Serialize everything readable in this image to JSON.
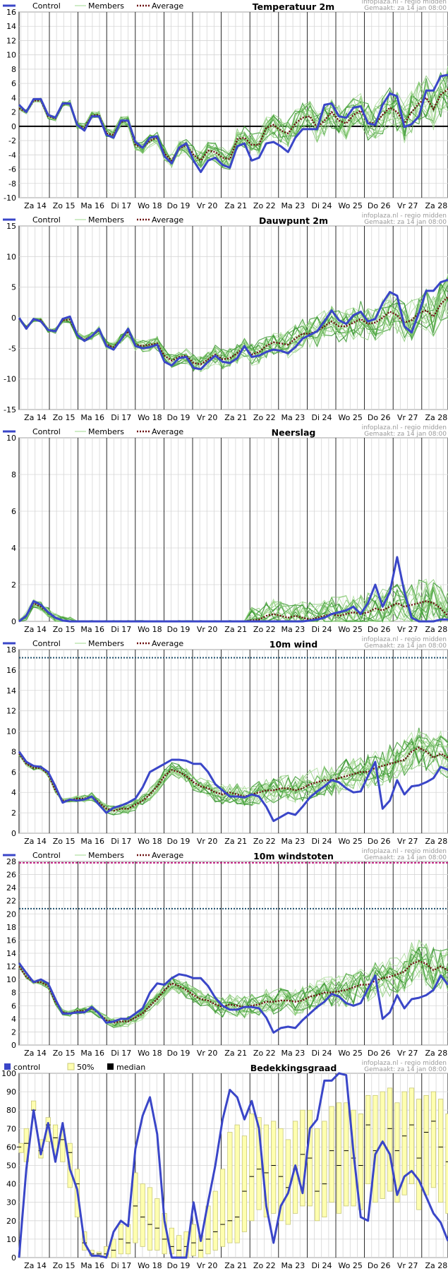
{
  "source_line1": "infoplaza.nl - regio midden",
  "source_line2": "Gemaakt: za 14 jan 08:00",
  "x_labels": [
    "Za 14",
    "Zo 15",
    "Ma 16",
    "Di 17",
    "Wo 18",
    "Do 19",
    "Vr 20",
    "Za 21",
    "Zo 22",
    "Ma 23",
    "Di 24",
    "Wo 25",
    "Do 26",
    "Vr 27",
    "Za 28"
  ],
  "legend_line": {
    "control": "Control",
    "members": "Members",
    "average": "Average"
  },
  "legend_bar": {
    "control": "control",
    "band": "50%",
    "median": "median"
  },
  "colors": {
    "control": "#3a46c8",
    "members": "#5fae4a",
    "average": "#6b0f0f",
    "band_fill": "#ffffb0",
    "band_stroke": "#c8c878",
    "grid": "#d6d6d6",
    "day": "#000000",
    "threshold": "#1f4f6b"
  },
  "chart_data": [
    {
      "type": "line",
      "title": "Temperatuur 2m",
      "ylim": [
        -10,
        16
      ],
      "yticks": [
        -10,
        -8,
        -6,
        -4,
        -2,
        0,
        2,
        4,
        6,
        8,
        10,
        12,
        14,
        16
      ],
      "zero_line": true,
      "series": [
        {
          "name": "Control",
          "values": [
            3,
            2,
            3.8,
            3.8,
            1.6,
            1.2,
            3.2,
            3.2,
            0.2,
            -0.6,
            1.4,
            1.4,
            -1.2,
            -1.6,
            0.8,
            0.8,
            -2.2,
            -3,
            -1.6,
            -1.4,
            -4.2,
            -5.2,
            -3,
            -2.4,
            -4.8,
            -6.4,
            -4.8,
            -4.4,
            -5.4,
            -5.8,
            -2.8,
            -2.4,
            -4.8,
            -4.4,
            -2.4,
            -2.2,
            -2.8,
            -3.6,
            -1.6,
            -0.4,
            -0.4,
            -0.4,
            3,
            3.2,
            1.4,
            1.2,
            2.6,
            2.8,
            0.4,
            0.2,
            3,
            4.6,
            4.2,
            -0.1,
            0.3,
            1.4,
            5,
            5,
            7,
            7.2
          ]
        },
        {
          "name": "Average",
          "values": [
            2.5,
            2,
            3.6,
            3.6,
            1.4,
            1.1,
            3.1,
            3.2,
            0.1,
            -0.2,
            1.5,
            1.6,
            -1,
            -1.2,
            0.6,
            0.8,
            -2.6,
            -3,
            -2,
            -1.6,
            -3.8,
            -4.8,
            -3.2,
            -2.6,
            -4,
            -4.8,
            -3.4,
            -3.6,
            -4.4,
            -4.6,
            -1.8,
            -1.6,
            -2.6,
            -2.6,
            -0.2,
            0.2,
            -0.6,
            -1,
            0.4,
            1.2,
            1.4,
            -0.2,
            0.8,
            2,
            0.8,
            0.4,
            1.6,
            2.2,
            0.6,
            0.4,
            1.6,
            2.6,
            2,
            0.4,
            2,
            3.2,
            4,
            2.4,
            4.4,
            5.2
          ]
        }
      ]
    },
    {
      "type": "line",
      "title": "Dauwpunt 2m",
      "ylim": [
        -15,
        15
      ],
      "yticks": [
        -15,
        -10,
        -5,
        0,
        5,
        10,
        15
      ],
      "zero_line": false,
      "series": [
        {
          "name": "Control",
          "values": [
            0,
            -1.8,
            -0.2,
            -0.6,
            -2,
            -2.2,
            -0.2,
            0.2,
            -2.8,
            -3.8,
            -3,
            -1.8,
            -4.6,
            -5.2,
            -3.6,
            -1.8,
            -4.6,
            -5,
            -4.8,
            -4.4,
            -7.2,
            -7.8,
            -6.6,
            -6.4,
            -8.2,
            -8.4,
            -7.2,
            -6.2,
            -7.2,
            -7.4,
            -6.6,
            -4.6,
            -6.4,
            -6.2,
            -5.6,
            -5.2,
            -5.4,
            -5.8,
            -4.8,
            -3.4,
            -2.8,
            -2.2,
            -0.6,
            1.2,
            -0.4,
            -1,
            0.4,
            1,
            -0.6,
            -0.2,
            2.4,
            4.2,
            3.6,
            -1.4,
            -2.4,
            0.8,
            4.4,
            4.4,
            5.8,
            6.2
          ]
        },
        {
          "name": "Average",
          "values": [
            -0.2,
            -1.6,
            -0.3,
            -0.4,
            -2,
            -2.1,
            -0.4,
            -0.3,
            -2.8,
            -3.6,
            -3,
            -2,
            -4.4,
            -4.8,
            -3.6,
            -2.2,
            -4.4,
            -4.6,
            -4.4,
            -4.2,
            -6.2,
            -7,
            -6.4,
            -6.2,
            -7.4,
            -7.6,
            -6.8,
            -6,
            -6.8,
            -6.6,
            -5.8,
            -4.8,
            -6,
            -5.6,
            -4.6,
            -4,
            -4.2,
            -4.4,
            -3.4,
            -2.6,
            -2.6,
            -2.2,
            -1.4,
            -0.6,
            -1.4,
            -1.4,
            -0.8,
            -0.2,
            -1,
            -0.8,
            0,
            1,
            0.4,
            -0.8,
            -0.4,
            0.8,
            1.2,
            0.2,
            2.2,
            3.4
          ]
        }
      ]
    },
    {
      "type": "line",
      "title": "Neerslag",
      "ylim": [
        0,
        10
      ],
      "yticks": [
        0,
        2,
        4,
        6,
        8,
        10
      ],
      "zero_line": false,
      "series": [
        {
          "name": "Control",
          "values": [
            0,
            0.3,
            1.1,
            0.9,
            0.5,
            0.2,
            0.05,
            0,
            0,
            0,
            0,
            0,
            0,
            0,
            0,
            0,
            0,
            0,
            0,
            0,
            0,
            0,
            0,
            0,
            0,
            0,
            0,
            0,
            0,
            0,
            0,
            0,
            0,
            0,
            0,
            0,
            0,
            0,
            0,
            0,
            0.05,
            0.1,
            0.2,
            0.4,
            0.5,
            0.6,
            0.8,
            0.4,
            1,
            2,
            0.8,
            1.6,
            3.5,
            1.6,
            0.2,
            0,
            0,
            0,
            0.1,
            0.1
          ]
        },
        {
          "name": "Average",
          "values": [
            0,
            0.3,
            1,
            0.8,
            0.5,
            0.2,
            0.05,
            0,
            0,
            0,
            0,
            0,
            0,
            0,
            0,
            0,
            0,
            0,
            0,
            0,
            0,
            0,
            0,
            0,
            0,
            0,
            0,
            0,
            0,
            0,
            0,
            0,
            0.05,
            0.1,
            0.3,
            0.4,
            0.3,
            0.2,
            0.3,
            0.2,
            0.1,
            0.2,
            0.3,
            0.4,
            0.3,
            0.4,
            0.5,
            0.4,
            0.5,
            0.7,
            0.6,
            0.8,
            1,
            0.8,
            0.9,
            1,
            1.1,
            1,
            0.7,
            0.3
          ]
        }
      ]
    },
    {
      "type": "line",
      "title": "10m wind",
      "ylim": [
        0,
        18
      ],
      "yticks": [
        0,
        2,
        4,
        6,
        8,
        10,
        12,
        14,
        16,
        18
      ],
      "zero_line": false,
      "threshold": 17.2,
      "series": [
        {
          "name": "Control",
          "values": [
            8,
            7,
            6.6,
            6.5,
            6,
            4.6,
            3,
            3.3,
            3.2,
            3.3,
            3.6,
            2.8,
            2,
            2.5,
            2.7,
            3,
            3.4,
            4.5,
            6,
            6.4,
            6.8,
            7.2,
            7.2,
            7.1,
            6.8,
            6.8,
            6,
            4.8,
            4.2,
            3.6,
            3.6,
            3.5,
            3.8,
            3.6,
            2.6,
            1.2,
            1.6,
            2,
            1.8,
            2.6,
            3.5,
            4.1,
            4.6,
            5.2,
            5,
            4.4,
            4,
            4.1,
            5.6,
            7,
            2.4,
            3.2,
            5.2,
            3.8,
            4.6,
            4.7,
            5,
            5.4,
            6.5,
            6.2
          ]
        },
        {
          "name": "Average",
          "values": [
            7.8,
            6.8,
            6.4,
            6.4,
            5.8,
            4.2,
            3.2,
            3.2,
            3.4,
            3.4,
            3.6,
            3,
            2.4,
            2.2,
            2.4,
            2.4,
            2.8,
            3.2,
            3.8,
            4.6,
            5.6,
            6.2,
            6,
            5.6,
            5,
            4.6,
            4.4,
            4,
            3.8,
            4,
            3.8,
            3.6,
            3.8,
            4,
            4.2,
            4.2,
            4.4,
            4.4,
            4.2,
            4.4,
            4.8,
            5,
            5.2,
            5.2,
            5.4,
            5.6,
            5.8,
            6,
            6,
            6.4,
            6.6,
            6.8,
            7,
            7.2,
            8,
            8.4,
            8,
            7.4,
            7.8,
            7.4
          ]
        }
      ]
    },
    {
      "type": "line",
      "title": "10m windstoten",
      "ylim": [
        0,
        28
      ],
      "yticks": [
        0,
        2,
        4,
        6,
        8,
        10,
        12,
        14,
        16,
        18,
        20,
        22,
        24,
        26,
        28
      ],
      "zero_line": false,
      "threshold": 20.8,
      "threshold2": 27.8,
      "series": [
        {
          "name": "Control",
          "values": [
            12.5,
            11,
            9.6,
            10,
            9.4,
            7,
            4.8,
            4.8,
            5,
            5,
            5.8,
            4.8,
            3.4,
            3.6,
            4,
            4,
            4.8,
            5.6,
            8,
            9.4,
            9.2,
            10.2,
            10.8,
            10.6,
            10.2,
            10.2,
            9,
            7.2,
            6,
            5.4,
            5.4,
            5.8,
            5.8,
            5.6,
            4.2,
            1.9,
            2.6,
            2.8,
            2.6,
            3.8,
            4.8,
            5.8,
            6.6,
            7.8,
            7.4,
            6.4,
            6,
            6.4,
            8.6,
            10.6,
            4,
            5,
            7.6,
            5.6,
            7,
            7.2,
            7.6,
            8.4,
            10.6,
            9.2
          ]
        },
        {
          "name": "Average",
          "values": [
            12,
            10.4,
            9.6,
            9.6,
            9,
            6.6,
            5,
            4.8,
            5.2,
            5.2,
            5.6,
            4.8,
            3.8,
            3.4,
            3.6,
            3.6,
            4.2,
            4.8,
            6,
            7,
            8.4,
            9.4,
            9,
            8.4,
            7.6,
            7,
            6.8,
            6.2,
            5.8,
            6.2,
            6,
            5.8,
            6,
            6.2,
            6.6,
            6.6,
            6.8,
            6.8,
            6.6,
            6.8,
            7.4,
            7.6,
            8,
            8,
            8.2,
            8.4,
            8.8,
            9.2,
            9.2,
            9.8,
            10.2,
            10.4,
            10.8,
            11.2,
            12.4,
            12.8,
            12.4,
            11.4,
            12,
            11.4
          ]
        }
      ]
    },
    {
      "type": "line",
      "title": "Bedekkingsgraad",
      "ylim": [
        0,
        100
      ],
      "yticks": [
        0,
        10,
        20,
        30,
        40,
        50,
        60,
        70,
        80,
        90,
        100
      ],
      "zero_line": false,
      "series": [
        {
          "name": "control",
          "values": [
            0,
            48,
            80,
            56,
            73,
            52,
            73,
            48,
            37,
            8,
            1,
            1,
            0,
            14,
            20,
            17,
            59,
            77,
            87,
            67,
            20,
            0,
            0,
            0,
            30,
            9,
            30,
            50,
            75,
            91,
            87,
            75,
            85,
            70,
            28,
            8,
            28,
            35,
            50,
            35,
            70,
            75,
            96,
            96,
            100,
            99,
            57,
            22,
            20,
            56,
            63,
            56,
            34,
            44,
            47,
            42,
            33,
            24,
            19,
            9
          ]
        },
        {
          "name": "median",
          "values": [
            60,
            62,
            80,
            58,
            72,
            65,
            64,
            57,
            40,
            8,
            2,
            2,
            2,
            4,
            10,
            8,
            28,
            22,
            18,
            16,
            10,
            6,
            4,
            6,
            8,
            4,
            10,
            14,
            18,
            20,
            22,
            36,
            44,
            48,
            46,
            50,
            44,
            38,
            48,
            56,
            54,
            36,
            40,
            58,
            50,
            58,
            54,
            50,
            72,
            58,
            62,
            70,
            58,
            66,
            72,
            54,
            68,
            74,
            60,
            52
          ]
        },
        {
          "name": "50%",
          "low": [
            57,
            52,
            80,
            54,
            63,
            56,
            52,
            38,
            22,
            4,
            1,
            1,
            0,
            0,
            2,
            2,
            8,
            6,
            4,
            4,
            2,
            2,
            0,
            0,
            1,
            0,
            2,
            4,
            6,
            8,
            8,
            14,
            20,
            26,
            22,
            24,
            20,
            18,
            24,
            28,
            28,
            20,
            22,
            30,
            24,
            28,
            28,
            26,
            40,
            30,
            32,
            36,
            30,
            34,
            40,
            26,
            34,
            38,
            30,
            24
          ],
          "high": [
            62,
            70,
            85,
            64,
            76,
            72,
            70,
            62,
            48,
            14,
            4,
            3,
            6,
            10,
            18,
            18,
            46,
            40,
            38,
            32,
            24,
            16,
            12,
            14,
            18,
            12,
            28,
            36,
            48,
            68,
            72,
            66,
            78,
            76,
            72,
            74,
            70,
            64,
            74,
            80,
            80,
            70,
            74,
            82,
            84,
            84,
            80,
            78,
            88,
            88,
            90,
            92,
            84,
            90,
            92,
            86,
            88,
            90,
            86,
            78
          ]
        }
      ]
    }
  ]
}
